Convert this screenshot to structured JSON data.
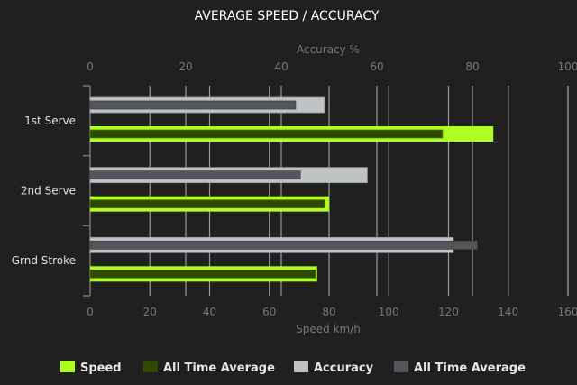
{
  "chart_data": {
    "type": "bar",
    "orientation": "horizontal",
    "title": "AVERAGE SPEED / ACCURACY",
    "categories": [
      "1st Serve",
      "2nd Serve",
      "Grnd Stroke"
    ],
    "x_bottom": {
      "label": "Speed km/h",
      "range": [
        0,
        160
      ],
      "ticks": [
        0,
        20,
        40,
        60,
        80,
        100,
        120,
        140,
        160
      ]
    },
    "x_top": {
      "label": "Accuracy %",
      "range": [
        0,
        100
      ],
      "ticks": [
        0,
        20,
        40,
        60,
        80,
        100
      ]
    },
    "grid": true,
    "legend_placement": "bottom",
    "series": [
      {
        "name": "Speed",
        "axis": "speed",
        "color": "#adff1f",
        "values": [
          135,
          80,
          76
        ]
      },
      {
        "name": "All Time Average",
        "axis": "speed",
        "color": "#2f4a00",
        "values": [
          118,
          78.5,
          75.5
        ]
      },
      {
        "name": "Accuracy",
        "axis": "accuracy",
        "color": "#bfc3c6",
        "values": [
          49,
          58,
          76
        ]
      },
      {
        "name": "All Time Average",
        "axis": "accuracy",
        "color": "#53575d",
        "values": [
          43,
          44,
          81
        ]
      }
    ]
  }
}
